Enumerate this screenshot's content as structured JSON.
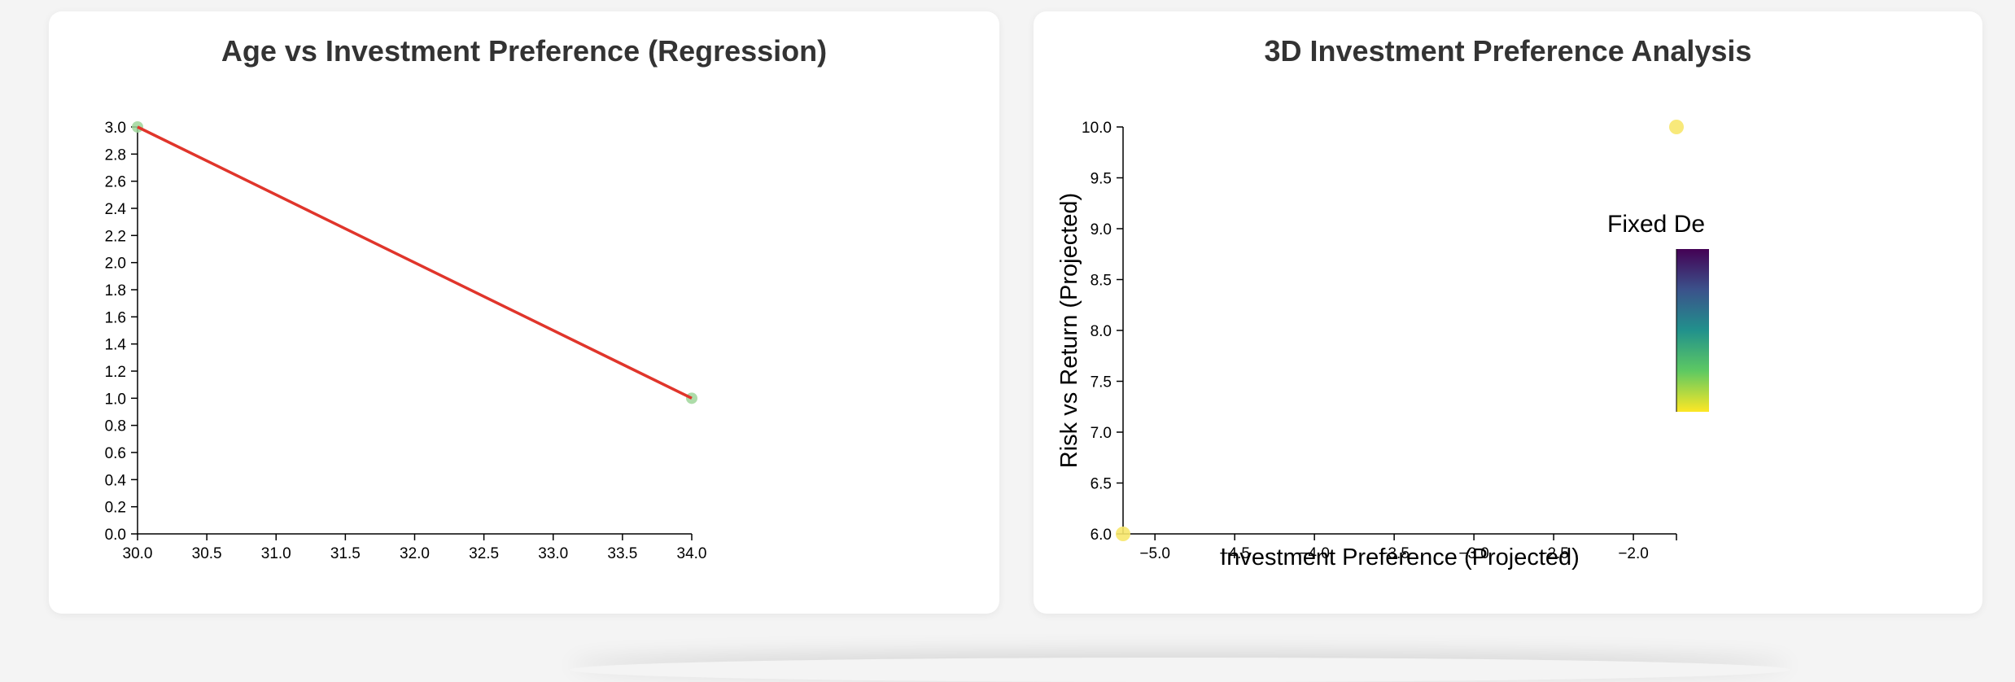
{
  "chart_data": [
    {
      "type": "scatter",
      "title": "Age vs Investment Preference (Regression)",
      "xlabel": "",
      "ylabel": "",
      "xlim": [
        30.0,
        34.0
      ],
      "ylim": [
        0.0,
        3.0
      ],
      "x_ticks": [
        "30.0",
        "30.5",
        "31.0",
        "31.5",
        "32.0",
        "32.5",
        "33.0",
        "33.5",
        "34.0"
      ],
      "y_ticks": [
        "0.0",
        "0.2",
        "0.4",
        "0.6",
        "0.8",
        "1.0",
        "1.2",
        "1.4",
        "1.6",
        "1.8",
        "2.0",
        "2.2",
        "2.4",
        "2.6",
        "2.8",
        "3.0"
      ],
      "points": [
        {
          "x": 30.0,
          "y": 3.0
        },
        {
          "x": 34.0,
          "y": 1.0
        }
      ],
      "regression_line": [
        {
          "x": 30.0,
          "y": 3.0
        },
        {
          "x": 34.0,
          "y": 1.0
        }
      ],
      "point_color": "#9fd69a",
      "line_color": "#e0352b",
      "grid": false
    },
    {
      "type": "scatter",
      "title": "3D Investment Preference Analysis",
      "xlabel": "Investment Preference (Projected)",
      "ylabel": "Risk vs Return (Projected)",
      "xlim": [
        -5.2,
        -1.73
      ],
      "ylim": [
        6.0,
        10.0
      ],
      "x_ticks": [
        {
          "v": -5.0,
          "label": "−5.0"
        },
        {
          "v": -4.5,
          "label": "−4.5"
        },
        {
          "v": -4.0,
          "label": "−4.0"
        },
        {
          "v": -3.5,
          "label": "−3.5"
        },
        {
          "v": -3.0,
          "label": "−3.0"
        },
        {
          "v": -2.5,
          "label": "−2.5"
        },
        {
          "v": -2.0,
          "label": "−2.0"
        }
      ],
      "y_ticks": [
        "6.0",
        "6.5",
        "7.0",
        "7.5",
        "8.0",
        "8.5",
        "9.0",
        "9.5",
        "10.0"
      ],
      "points": [
        {
          "x": -5.2,
          "y": 6.0
        },
        {
          "x": -1.73,
          "y": 10.0
        }
      ],
      "point_color": "#f7e76b",
      "legend_title": "Fixed De",
      "colorscale": [
        "#fde725",
        "#5ec962",
        "#21918c",
        "#3b528b",
        "#440154"
      ],
      "grid": false
    }
  ]
}
